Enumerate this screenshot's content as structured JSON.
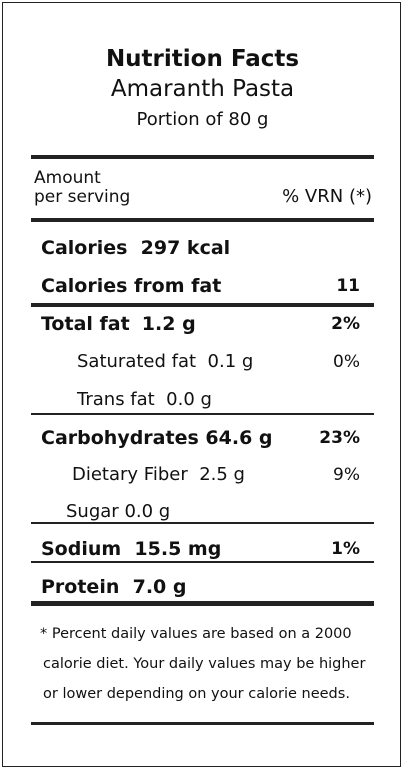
{
  "header": {
    "title": "Nutrition Facts",
    "product": "Amaranth Pasta",
    "portion": "Portion of 80 g"
  },
  "columns": {
    "amount": "Amount",
    "per_serving": "per serving",
    "dv": "% VRN (*)"
  },
  "rows": [
    {
      "label": "Calories",
      "amount": "297 kcal"
    },
    {
      "label": "Calories from fat",
      "dv": "11"
    },
    {
      "label": "Total fat",
      "amount": "1.2 g",
      "dv": "2%"
    },
    {
      "label": "Saturated fat",
      "amount": "0.1 g",
      "dv": "0%"
    },
    {
      "label": "Trans fat",
      "amount": "0.0 g"
    },
    {
      "label": "Carbohydrates",
      "amount": "64.6 g",
      "dv": "23%"
    },
    {
      "label": "Dietary Fiber",
      "amount": "2.5 g",
      "dv": "9%"
    },
    {
      "label": "Sugar",
      "amount": "0.0 g"
    },
    {
      "label": "Sodium",
      "amount": "15.5 mg",
      "dv": "1%"
    },
    {
      "label": "Protein",
      "amount": "7.0 g"
    }
  ],
  "footnote": [
    "* Percent daily values are based on a 2000",
    "calorie diet. Your daily values may be higher",
    "or lower depending on your calorie needs."
  ]
}
